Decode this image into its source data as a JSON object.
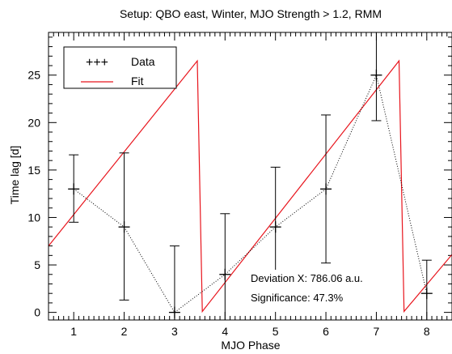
{
  "chart_data": {
    "type": "line",
    "title": "Setup: QBO east, Winter, MJO Strength > 1.2, RMM",
    "xlabel": "MJO Phase",
    "ylabel": "Time lag  [d]",
    "xlim": [
      0.5,
      8.5
    ],
    "ylim": [
      -0.8,
      29.5
    ],
    "x_ticks": [
      1,
      2,
      3,
      4,
      5,
      6,
      7,
      8
    ],
    "y_ticks": [
      0,
      5,
      10,
      15,
      20,
      25
    ],
    "grid": false,
    "legend_position": "top-left",
    "legend": [
      {
        "label": "Data",
        "symbol": "+++"
      },
      {
        "label": "Fit",
        "symbol": "line"
      }
    ],
    "colors": {
      "data": "#000000",
      "fit": "#e8141c",
      "axes": "#000000"
    },
    "series": [
      {
        "name": "Data",
        "style": "dotted-with-errorbars",
        "x": [
          1,
          2,
          3,
          4,
          5,
          6,
          7,
          8
        ],
        "y": [
          13,
          9,
          0,
          4,
          9,
          13,
          25,
          2
        ],
        "err_low": [
          9.5,
          1.3,
          -2.5,
          -2.5,
          2.7,
          5.2,
          20.2,
          -2.5
        ],
        "err_high": [
          16.6,
          16.8,
          7.0,
          10.4,
          15.3,
          20.8,
          29.5,
          5.5
        ]
      },
      {
        "name": "Fit",
        "style": "sawtooth",
        "x": [
          0.5,
          3.45,
          3.55,
          7.45,
          7.55,
          8.5
        ],
        "y": [
          7.0,
          26.5,
          0.1,
          26.5,
          0.1,
          6.1
        ]
      }
    ],
    "annotations": [
      {
        "text": "Deviation X: 786.06 a.u."
      },
      {
        "text": "Significance: 47.3%"
      }
    ]
  }
}
